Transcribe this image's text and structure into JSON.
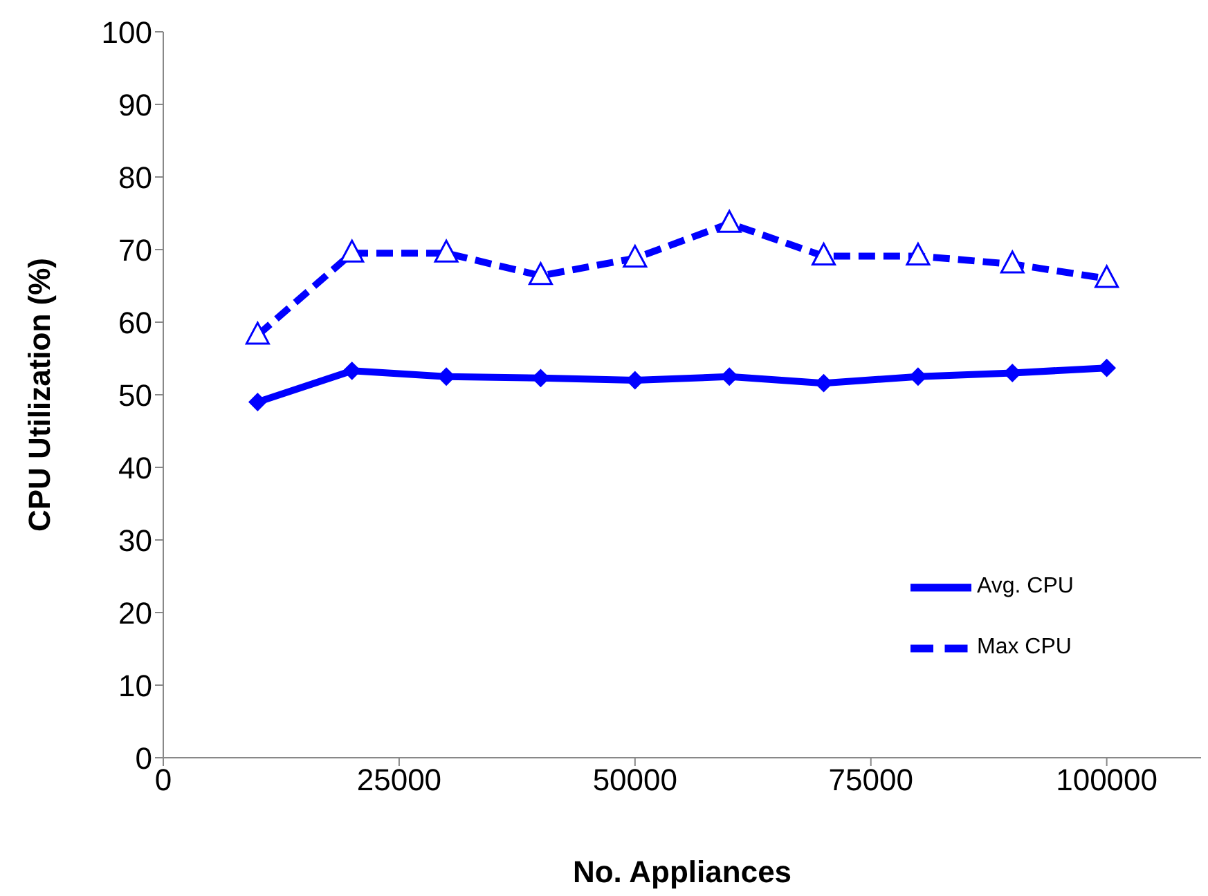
{
  "chart_data": {
    "type": "line",
    "xlabel": "No. Appliances",
    "ylabel": "CPU Utilization (%)",
    "x": [
      10000,
      20000,
      30000,
      40000,
      50000,
      60000,
      70000,
      80000,
      90000,
      100000
    ],
    "series": [
      {
        "name": "Avg. CPU",
        "color": "#0000ff",
        "marker": "diamond",
        "line_style": "solid",
        "values": [
          49.0,
          53.3,
          52.5,
          52.3,
          52.0,
          52.5,
          51.6,
          52.5,
          53.0,
          53.7
        ]
      },
      {
        "name": "Max CPU",
        "color": "#0000ff",
        "marker": "triangle",
        "line_style": "dashed",
        "values": [
          58.2,
          69.5,
          69.5,
          66.4,
          68.8,
          73.6,
          69.1,
          69.1,
          68.0,
          66.0
        ]
      }
    ],
    "xlim": [
      0,
      110000
    ],
    "xticks": [
      0,
      25000,
      50000,
      75000,
      100000
    ],
    "ylim": [
      0,
      100
    ],
    "yticks": [
      0,
      10,
      20,
      30,
      40,
      50,
      60,
      70,
      80,
      90,
      100
    ],
    "grid": false,
    "legend": "bottom right"
  }
}
